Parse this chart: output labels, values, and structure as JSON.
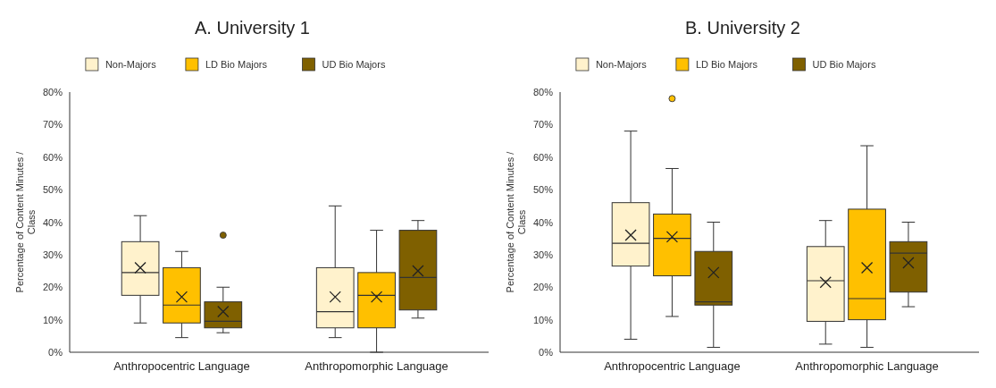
{
  "chart_data": [
    {
      "type": "box",
      "title": "A. University 1",
      "ylabel": "Percentage of Content Minutes / Class",
      "categories": [
        "Anthropocentric Language",
        "Anthropomorphic Language"
      ],
      "ylim": [
        0,
        80
      ],
      "yticks": [
        {
          "value": 0,
          "label": "0%"
        },
        {
          "value": 10,
          "label": "10%"
        },
        {
          "value": 20,
          "label": "20%"
        },
        {
          "value": 30,
          "label": "30%"
        },
        {
          "value": 40,
          "label": "40%"
        },
        {
          "value": 50,
          "label": "50%"
        },
        {
          "value": 60,
          "label": "60%"
        },
        {
          "value": 70,
          "label": "70%"
        },
        {
          "value": 80,
          "label": "80%"
        }
      ],
      "grid": false,
      "legend": "top",
      "series": [
        {
          "name": "Non-Majors",
          "color": "#fff2cc",
          "boxes": [
            {
              "low": 9,
              "q1": 17.5,
              "median": 24.5,
              "q3": 34,
              "high": 42,
              "mean": 26
            },
            {
              "low": 4.5,
              "q1": 7.5,
              "median": 12.5,
              "q3": 26,
              "high": 45,
              "mean": 17
            }
          ]
        },
        {
          "name": "LD Bio Majors",
          "color": "#ffc000",
          "boxes": [
            {
              "low": 4.5,
              "q1": 9,
              "median": 14.5,
              "q3": 26,
              "high": 31,
              "mean": 17
            },
            {
              "low": 0,
              "q1": 7.5,
              "median": 17.5,
              "q3": 24.5,
              "high": 37.5,
              "mean": 17
            }
          ]
        },
        {
          "name": "UD Bio Majors",
          "color": "#7f6000",
          "boxes": [
            {
              "low": 6,
              "q1": 7.5,
              "median": 9.5,
              "q3": 15.5,
              "high": 20,
              "mean": 12.5,
              "outliers": [
                36
              ]
            },
            {
              "low": 10.5,
              "q1": 13,
              "median": 23,
              "q3": 37.5,
              "high": 40.5,
              "mean": 25
            }
          ]
        }
      ]
    },
    {
      "type": "box",
      "title": "B. University 2",
      "ylabel": "Percentage of Content Minutes / Class",
      "categories": [
        "Anthropocentric Language",
        "Anthropomorphic Language"
      ],
      "ylim": [
        0,
        80
      ],
      "yticks": [
        {
          "value": 0,
          "label": "0%"
        },
        {
          "value": 10,
          "label": "10%"
        },
        {
          "value": 20,
          "label": "20%"
        },
        {
          "value": 30,
          "label": "30%"
        },
        {
          "value": 40,
          "label": "40%"
        },
        {
          "value": 50,
          "label": "50%"
        },
        {
          "value": 60,
          "label": "60%"
        },
        {
          "value": 70,
          "label": "70%"
        },
        {
          "value": 80,
          "label": "80%"
        }
      ],
      "grid": false,
      "legend": "top",
      "series": [
        {
          "name": "Non-Majors",
          "color": "#fff2cc",
          "boxes": [
            {
              "low": 4,
              "q1": 26.5,
              "median": 33.5,
              "q3": 46,
              "high": 68,
              "mean": 36
            },
            {
              "low": 2.5,
              "q1": 9.5,
              "median": 22,
              "q3": 32.5,
              "high": 40.5,
              "mean": 21.5
            }
          ]
        },
        {
          "name": "LD Bio Majors",
          "color": "#ffc000",
          "boxes": [
            {
              "low": 11,
              "q1": 23.5,
              "median": 35,
              "q3": 42.5,
              "high": 56.5,
              "mean": 35.5,
              "outliers": [
                78
              ]
            },
            {
              "low": 1.5,
              "q1": 10,
              "median": 16.5,
              "q3": 44,
              "high": 63.5,
              "mean": 26
            }
          ]
        },
        {
          "name": "UD Bio Majors",
          "color": "#7f6000",
          "boxes": [
            {
              "low": 1.5,
              "q1": 14.5,
              "median": 15.5,
              "q3": 31,
              "high": 40,
              "mean": 24.5
            },
            {
              "low": 14,
              "q1": 18.5,
              "median": 30.5,
              "q3": 34,
              "high": 40,
              "mean": 27.5
            }
          ]
        }
      ]
    }
  ]
}
